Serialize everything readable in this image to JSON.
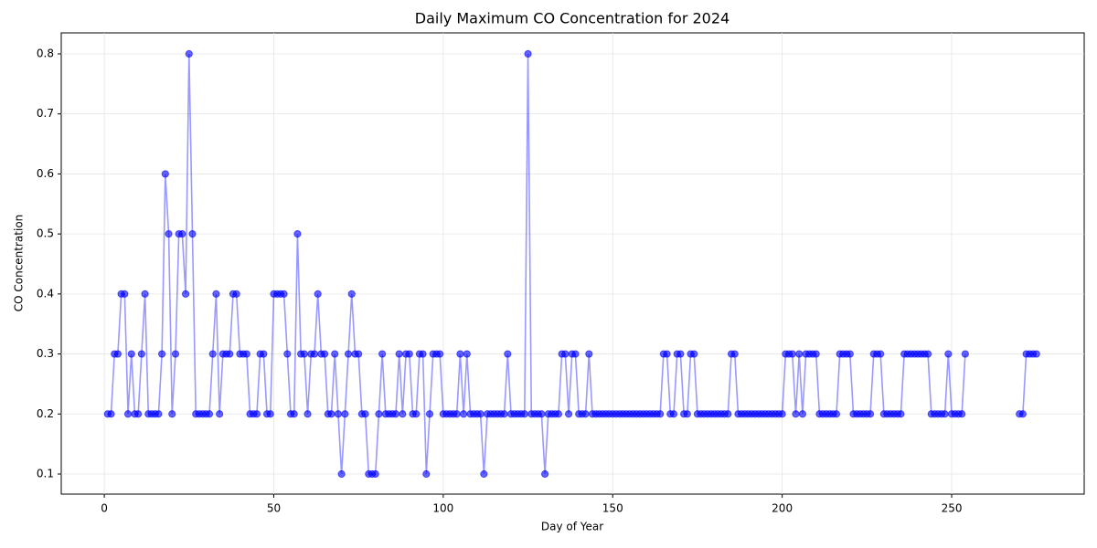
{
  "chart_data": {
    "type": "line",
    "title": "Daily Maximum CO Concentration for 2024",
    "xlabel": "Day of Year",
    "ylabel": "CO Concentration",
    "x": [
      1,
      2,
      3,
      4,
      5,
      6,
      7,
      8,
      9,
      10,
      11,
      12,
      13,
      14,
      15,
      16,
      17,
      18,
      19,
      20,
      21,
      22,
      23,
      24,
      25,
      26,
      27,
      28,
      29,
      30,
      31,
      32,
      33,
      34,
      35,
      36,
      37,
      38,
      39,
      40,
      41,
      42,
      43,
      44,
      45,
      46,
      47,
      48,
      49,
      50,
      51,
      52,
      53,
      54,
      55,
      56,
      57,
      58,
      59,
      60,
      61,
      62,
      63,
      64,
      65,
      66,
      67,
      68,
      69,
      70,
      71,
      72,
      73,
      74,
      75,
      76,
      77,
      78,
      79,
      80,
      81,
      82,
      83,
      84,
      85,
      86,
      87,
      88,
      89,
      90,
      91,
      92,
      93,
      94,
      95,
      96,
      97,
      98,
      99,
      100,
      101,
      102,
      103,
      104,
      105,
      106,
      107,
      108,
      109,
      110,
      111,
      112,
      113,
      114,
      115,
      116,
      117,
      118,
      119,
      120,
      121,
      122,
      123,
      124,
      125,
      126,
      127,
      128,
      129,
      130,
      131,
      132,
      133,
      134,
      135,
      136,
      137,
      138,
      139,
      140,
      141,
      142,
      143,
      144,
      145,
      146,
      147,
      148,
      149,
      150,
      151,
      152,
      153,
      154,
      155,
      156,
      157,
      158,
      159,
      160,
      161,
      162,
      163,
      164,
      165,
      166,
      167,
      168,
      169,
      170,
      171,
      172,
      173,
      174,
      175,
      176,
      177,
      178,
      179,
      180,
      181,
      182,
      183,
      184,
      185,
      186,
      187,
      188,
      189,
      190,
      191,
      192,
      193,
      194,
      195,
      196,
      197,
      198,
      199,
      200,
      201,
      202,
      203,
      204,
      205,
      206,
      207,
      208,
      209,
      210,
      211,
      212,
      213,
      214,
      215,
      216,
      217,
      218,
      219,
      220,
      221,
      222,
      223,
      224,
      225,
      226,
      227,
      228,
      229,
      230,
      231,
      232,
      233,
      234,
      235,
      236,
      237,
      238,
      239,
      240,
      241,
      242,
      243,
      244,
      245,
      246,
      247,
      248,
      249,
      250,
      251,
      252,
      253,
      254,
      255,
      256,
      257,
      258,
      259,
      260,
      261,
      262,
      263,
      264,
      265,
      266,
      267,
      268,
      269,
      270,
      271,
      272,
      273,
      274,
      275
    ],
    "series": [
      {
        "name": "CO",
        "color": "#0000ff",
        "values": [
          0.2,
          0.2,
          0.3,
          0.3,
          0.4,
          0.4,
          0.2,
          0.3,
          0.2,
          0.2,
          0.3,
          0.4,
          0.2,
          0.2,
          0.2,
          0.2,
          0.3,
          0.6,
          0.5,
          0.2,
          0.3,
          0.5,
          0.5,
          0.4,
          0.8,
          0.5,
          0.2,
          0.2,
          0.2,
          0.2,
          0.2,
          0.3,
          0.4,
          0.2,
          0.3,
          0.3,
          0.3,
          0.4,
          0.4,
          0.3,
          0.3,
          0.3,
          0.2,
          0.2,
          0.2,
          0.3,
          0.3,
          0.2,
          0.2,
          0.4,
          0.4,
          0.4,
          0.4,
          0.3,
          0.2,
          0.2,
          0.5,
          0.3,
          0.3,
          0.2,
          0.3,
          0.3,
          0.4,
          0.3,
          0.3,
          0.2,
          0.2,
          0.3,
          0.2,
          0.1,
          0.2,
          0.3,
          0.4,
          0.3,
          0.3,
          0.2,
          0.2,
          0.1,
          0.1,
          0.1,
          0.2,
          0.3,
          0.2,
          0.2,
          0.2,
          0.2,
          0.3,
          0.2,
          0.3,
          0.3,
          0.2,
          0.2,
          0.3,
          0.3,
          0.1,
          0.2,
          0.3,
          0.3,
          0.3,
          0.2,
          0.2,
          0.2,
          0.2,
          0.2,
          0.3,
          0.2,
          0.3,
          0.2,
          0.2,
          0.2,
          0.2,
          0.1,
          0.2,
          0.2,
          0.2,
          0.2,
          0.2,
          0.2,
          0.3,
          0.2,
          0.2,
          0.2,
          0.2,
          0.2,
          0.8,
          0.2,
          0.2,
          0.2,
          0.2,
          0.1,
          0.2,
          0.2,
          0.2,
          0.2,
          0.3,
          0.3,
          0.2,
          0.3,
          0.3,
          0.2,
          0.2,
          0.2,
          0.3,
          0.2,
          0.2,
          0.2,
          0.2,
          0.2,
          0.2,
          0.2,
          0.2,
          0.2,
          0.2,
          0.2,
          0.2,
          0.2,
          0.2,
          0.2,
          0.2,
          0.2,
          0.2,
          0.2,
          0.2,
          0.2,
          0.3,
          0.3,
          0.2,
          0.2,
          0.3,
          0.3,
          0.2,
          0.2,
          0.3,
          0.3,
          0.2,
          0.2,
          0.2,
          0.2,
          0.2,
          0.2,
          0.2,
          0.2,
          0.2,
          0.2,
          0.3,
          0.3,
          0.2,
          0.2,
          0.2,
          0.2,
          0.2,
          0.2,
          0.2,
          0.2,
          0.2,
          0.2,
          0.2,
          0.2,
          0.2,
          0.2,
          0.3,
          0.3,
          0.3,
          0.2,
          0.3,
          0.2,
          0.3,
          0.3,
          0.3,
          0.3,
          0.2,
          0.2,
          0.2,
          0.2,
          0.2,
          0.2,
          0.3,
          0.3,
          0.3,
          0.3,
          0.2,
          0.2,
          0.2,
          0.2,
          0.2,
          0.2,
          0.3,
          0.3,
          0.3,
          0.2,
          0.2,
          0.2,
          0.2,
          0.2,
          0.2,
          0.3,
          0.3,
          0.3,
          0.3,
          0.3,
          0.3,
          0.3,
          0.3,
          0.2,
          0.2,
          0.2,
          0.2,
          0.2,
          0.3,
          0.2,
          0.2,
          0.2,
          0.2,
          0.3,
          null,
          null,
          null,
          null,
          null,
          null,
          null,
          null,
          null,
          null,
          null,
          null,
          null,
          null,
          null,
          0.2,
          0.2,
          0.3,
          0.3,
          0.3,
          0.3
        ]
      }
    ],
    "xlim": [
      -12.7,
      289.1
    ],
    "ylim": [
      0.0665,
      0.835
    ],
    "xticks": [
      0,
      50,
      100,
      150,
      200,
      250
    ],
    "yticks": [
      {
        "value": 0.1,
        "label": "0.1"
      },
      {
        "value": 0.2,
        "label": "0.2"
      },
      {
        "value": 0.3,
        "label": "0.3"
      },
      {
        "value": 0.4,
        "label": "0.4"
      },
      {
        "value": 0.5,
        "label": "0.5"
      },
      {
        "value": 0.6,
        "label": "0.6"
      },
      {
        "value": 0.7,
        "label": "0.7"
      },
      {
        "value": 0.8,
        "label": "0.8"
      }
    ],
    "grid": true
  }
}
